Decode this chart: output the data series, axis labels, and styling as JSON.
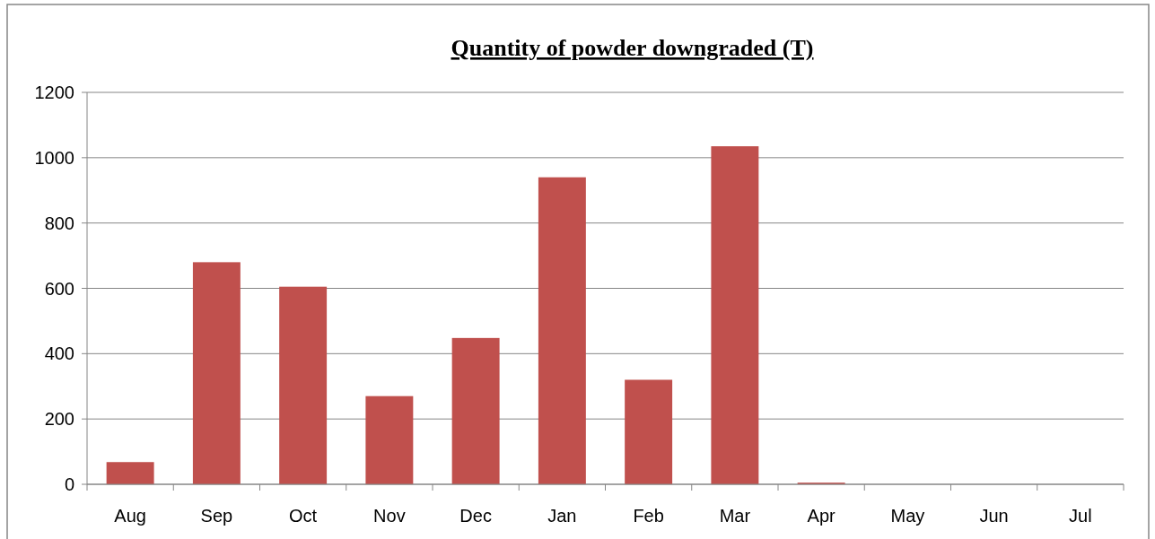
{
  "chart_data": {
    "type": "bar",
    "title": "Quantity of powder downgraded (T)",
    "categories": [
      "Aug",
      "Sep",
      "Oct",
      "Nov",
      "Dec",
      "Jan",
      "Feb",
      "Mar",
      "Apr",
      "May",
      "Jun",
      "Jul"
    ],
    "values": [
      68,
      680,
      605,
      270,
      448,
      940,
      320,
      1035,
      5,
      0,
      0,
      0
    ],
    "color": "#c0504d",
    "ylim": [
      0,
      1200
    ],
    "yticks": [
      0,
      200,
      400,
      600,
      800,
      1000,
      1200
    ],
    "grid": "y"
  }
}
